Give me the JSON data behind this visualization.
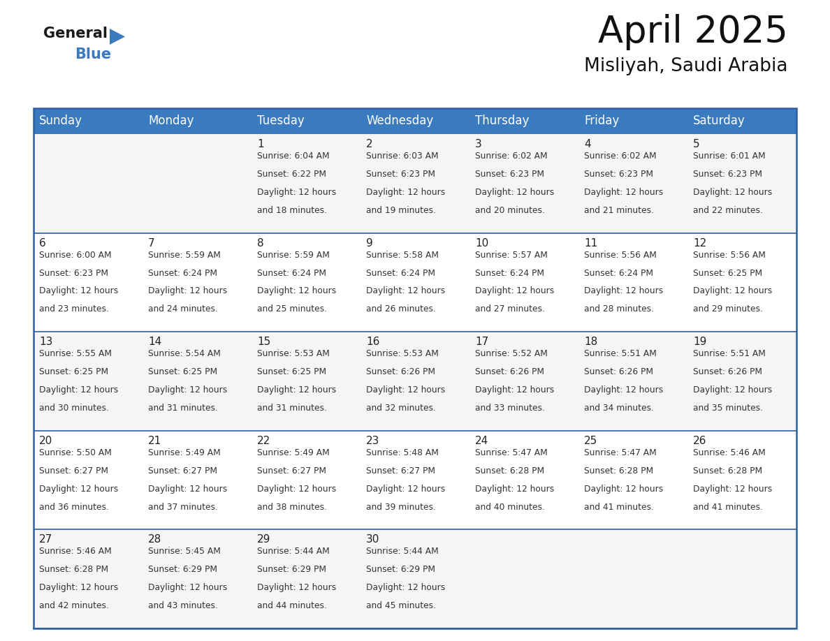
{
  "title": "April 2025",
  "subtitle": "Misliyah, Saudi Arabia",
  "header_color": "#3a7abf",
  "header_text_color": "#ffffff",
  "cell_bg_even": "#f5f5f5",
  "cell_bg_odd": "#ffffff",
  "border_color": "#2e5f9e",
  "thin_line_color": "#2e5f9e",
  "day_headers": [
    "Sunday",
    "Monday",
    "Tuesday",
    "Wednesday",
    "Thursday",
    "Friday",
    "Saturday"
  ],
  "days": [
    {
      "day": 1,
      "col": 2,
      "row": 0,
      "sunrise": "6:04 AM",
      "sunset": "6:22 PM",
      "daylight_hours": 12,
      "daylight_minutes": 18
    },
    {
      "day": 2,
      "col": 3,
      "row": 0,
      "sunrise": "6:03 AM",
      "sunset": "6:23 PM",
      "daylight_hours": 12,
      "daylight_minutes": 19
    },
    {
      "day": 3,
      "col": 4,
      "row": 0,
      "sunrise": "6:02 AM",
      "sunset": "6:23 PM",
      "daylight_hours": 12,
      "daylight_minutes": 20
    },
    {
      "day": 4,
      "col": 5,
      "row": 0,
      "sunrise": "6:02 AM",
      "sunset": "6:23 PM",
      "daylight_hours": 12,
      "daylight_minutes": 21
    },
    {
      "day": 5,
      "col": 6,
      "row": 0,
      "sunrise": "6:01 AM",
      "sunset": "6:23 PM",
      "daylight_hours": 12,
      "daylight_minutes": 22
    },
    {
      "day": 6,
      "col": 0,
      "row": 1,
      "sunrise": "6:00 AM",
      "sunset": "6:23 PM",
      "daylight_hours": 12,
      "daylight_minutes": 23
    },
    {
      "day": 7,
      "col": 1,
      "row": 1,
      "sunrise": "5:59 AM",
      "sunset": "6:24 PM",
      "daylight_hours": 12,
      "daylight_minutes": 24
    },
    {
      "day": 8,
      "col": 2,
      "row": 1,
      "sunrise": "5:59 AM",
      "sunset": "6:24 PM",
      "daylight_hours": 12,
      "daylight_minutes": 25
    },
    {
      "day": 9,
      "col": 3,
      "row": 1,
      "sunrise": "5:58 AM",
      "sunset": "6:24 PM",
      "daylight_hours": 12,
      "daylight_minutes": 26
    },
    {
      "day": 10,
      "col": 4,
      "row": 1,
      "sunrise": "5:57 AM",
      "sunset": "6:24 PM",
      "daylight_hours": 12,
      "daylight_minutes": 27
    },
    {
      "day": 11,
      "col": 5,
      "row": 1,
      "sunrise": "5:56 AM",
      "sunset": "6:24 PM",
      "daylight_hours": 12,
      "daylight_minutes": 28
    },
    {
      "day": 12,
      "col": 6,
      "row": 1,
      "sunrise": "5:56 AM",
      "sunset": "6:25 PM",
      "daylight_hours": 12,
      "daylight_minutes": 29
    },
    {
      "day": 13,
      "col": 0,
      "row": 2,
      "sunrise": "5:55 AM",
      "sunset": "6:25 PM",
      "daylight_hours": 12,
      "daylight_minutes": 30
    },
    {
      "day": 14,
      "col": 1,
      "row": 2,
      "sunrise": "5:54 AM",
      "sunset": "6:25 PM",
      "daylight_hours": 12,
      "daylight_minutes": 31
    },
    {
      "day": 15,
      "col": 2,
      "row": 2,
      "sunrise": "5:53 AM",
      "sunset": "6:25 PM",
      "daylight_hours": 12,
      "daylight_minutes": 31
    },
    {
      "day": 16,
      "col": 3,
      "row": 2,
      "sunrise": "5:53 AM",
      "sunset": "6:26 PM",
      "daylight_hours": 12,
      "daylight_minutes": 32
    },
    {
      "day": 17,
      "col": 4,
      "row": 2,
      "sunrise": "5:52 AM",
      "sunset": "6:26 PM",
      "daylight_hours": 12,
      "daylight_minutes": 33
    },
    {
      "day": 18,
      "col": 5,
      "row": 2,
      "sunrise": "5:51 AM",
      "sunset": "6:26 PM",
      "daylight_hours": 12,
      "daylight_minutes": 34
    },
    {
      "day": 19,
      "col": 6,
      "row": 2,
      "sunrise": "5:51 AM",
      "sunset": "6:26 PM",
      "daylight_hours": 12,
      "daylight_minutes": 35
    },
    {
      "day": 20,
      "col": 0,
      "row": 3,
      "sunrise": "5:50 AM",
      "sunset": "6:27 PM",
      "daylight_hours": 12,
      "daylight_minutes": 36
    },
    {
      "day": 21,
      "col": 1,
      "row": 3,
      "sunrise": "5:49 AM",
      "sunset": "6:27 PM",
      "daylight_hours": 12,
      "daylight_minutes": 37
    },
    {
      "day": 22,
      "col": 2,
      "row": 3,
      "sunrise": "5:49 AM",
      "sunset": "6:27 PM",
      "daylight_hours": 12,
      "daylight_minutes": 38
    },
    {
      "day": 23,
      "col": 3,
      "row": 3,
      "sunrise": "5:48 AM",
      "sunset": "6:27 PM",
      "daylight_hours": 12,
      "daylight_minutes": 39
    },
    {
      "day": 24,
      "col": 4,
      "row": 3,
      "sunrise": "5:47 AM",
      "sunset": "6:28 PM",
      "daylight_hours": 12,
      "daylight_minutes": 40
    },
    {
      "day": 25,
      "col": 5,
      "row": 3,
      "sunrise": "5:47 AM",
      "sunset": "6:28 PM",
      "daylight_hours": 12,
      "daylight_minutes": 41
    },
    {
      "day": 26,
      "col": 6,
      "row": 3,
      "sunrise": "5:46 AM",
      "sunset": "6:28 PM",
      "daylight_hours": 12,
      "daylight_minutes": 41
    },
    {
      "day": 27,
      "col": 0,
      "row": 4,
      "sunrise": "5:46 AM",
      "sunset": "6:28 PM",
      "daylight_hours": 12,
      "daylight_minutes": 42
    },
    {
      "day": 28,
      "col": 1,
      "row": 4,
      "sunrise": "5:45 AM",
      "sunset": "6:29 PM",
      "daylight_hours": 12,
      "daylight_minutes": 43
    },
    {
      "day": 29,
      "col": 2,
      "row": 4,
      "sunrise": "5:44 AM",
      "sunset": "6:29 PM",
      "daylight_hours": 12,
      "daylight_minutes": 44
    },
    {
      "day": 30,
      "col": 3,
      "row": 4,
      "sunrise": "5:44 AM",
      "sunset": "6:29 PM",
      "daylight_hours": 12,
      "daylight_minutes": 45
    }
  ],
  "num_rows": 5,
  "title_fontsize": 38,
  "subtitle_fontsize": 19,
  "header_fontsize": 12,
  "day_num_fontsize": 11,
  "content_fontsize": 8.8,
  "logo_general_fontsize": 15,
  "logo_blue_fontsize": 15
}
